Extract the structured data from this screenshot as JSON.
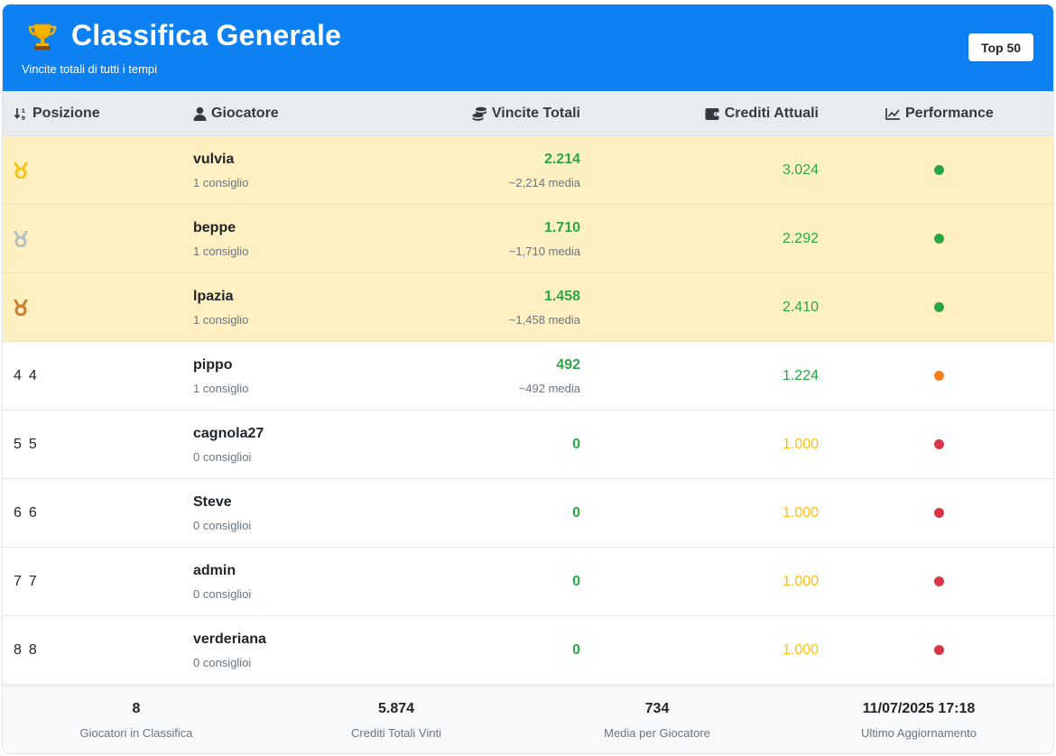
{
  "header": {
    "title": "Classifica Generale",
    "subtitle": "Vincite totali di tutti i tempi",
    "badge": "Top 50",
    "icon": "trophy-icon"
  },
  "table": {
    "columns": [
      {
        "label": "Posizione",
        "icon": "sort-numeric-icon"
      },
      {
        "label": "Giocatore",
        "icon": "user-icon"
      },
      {
        "label": "Vincite Totali",
        "icon": "coins-icon"
      },
      {
        "label": "Crediti Attuali",
        "icon": "wallet-icon"
      },
      {
        "label": "Performance",
        "icon": "chart-line-icon"
      }
    ],
    "rows": [
      {
        "pos_a": "",
        "pos_b": "",
        "medal": "gold",
        "name": "vulvia",
        "tips": "1 consiglio",
        "wins": "2.214",
        "avg": "~2,214 media",
        "credits": "3.024",
        "credits_color": "#28a745",
        "perf_color": "#28a745"
      },
      {
        "pos_a": "",
        "pos_b": "",
        "medal": "silver",
        "name": "beppe",
        "tips": "1 consiglio",
        "wins": "1.710",
        "avg": "~1,710 media",
        "credits": "2.292",
        "credits_color": "#28a745",
        "perf_color": "#28a745"
      },
      {
        "pos_a": "",
        "pos_b": "",
        "medal": "bronze",
        "name": "lpazia",
        "tips": "1 consiglio",
        "wins": "1.458",
        "avg": "~1,458 media",
        "credits": "2.410",
        "credits_color": "#28a745",
        "perf_color": "#28a745"
      },
      {
        "pos_a": "4",
        "pos_b": "4",
        "medal": "",
        "name": "pippo",
        "tips": "1 consiglio",
        "wins": "492",
        "avg": "~492 media",
        "credits": "1.224",
        "credits_color": "#28a745",
        "perf_color": "#fd7e14"
      },
      {
        "pos_a": "5",
        "pos_b": "5",
        "medal": "",
        "name": "cagnola27",
        "tips": "0 consiglioi",
        "wins": "0",
        "avg": "",
        "credits": "1.000",
        "credits_color": "#ffc107",
        "perf_color": "#dc3545"
      },
      {
        "pos_a": "6",
        "pos_b": "6",
        "medal": "",
        "name": "Steve",
        "tips": "0 consiglioi",
        "wins": "0",
        "avg": "",
        "credits": "1.000",
        "credits_color": "#ffc107",
        "perf_color": "#dc3545"
      },
      {
        "pos_a": "7",
        "pos_b": "7",
        "medal": "",
        "name": "admin",
        "tips": "0 consiglioi",
        "wins": "0",
        "avg": "",
        "credits": "1.000",
        "credits_color": "#ffc107",
        "perf_color": "#dc3545"
      },
      {
        "pos_a": "8",
        "pos_b": "8",
        "medal": "",
        "name": "verderiana",
        "tips": "0 consiglioi",
        "wins": "0",
        "avg": "",
        "credits": "1.000",
        "credits_color": "#ffc107",
        "perf_color": "#dc3545"
      }
    ]
  },
  "footer": {
    "stats": [
      {
        "value": "8",
        "label": "Giocatori in Classifica"
      },
      {
        "value": "5.874",
        "label": "Crediti Totali Vinti"
      },
      {
        "value": "734",
        "label": "Media per Giocatore"
      },
      {
        "value": "11/07/2025 17:18",
        "label": "Ultimo Aggiornamento"
      }
    ]
  },
  "colors": {
    "header_bg": "#0d80f2",
    "top3_bg": "#fff0c1",
    "gold": "#f5c518",
    "silver": "#b8bec4",
    "bronze": "#cd7f32"
  }
}
